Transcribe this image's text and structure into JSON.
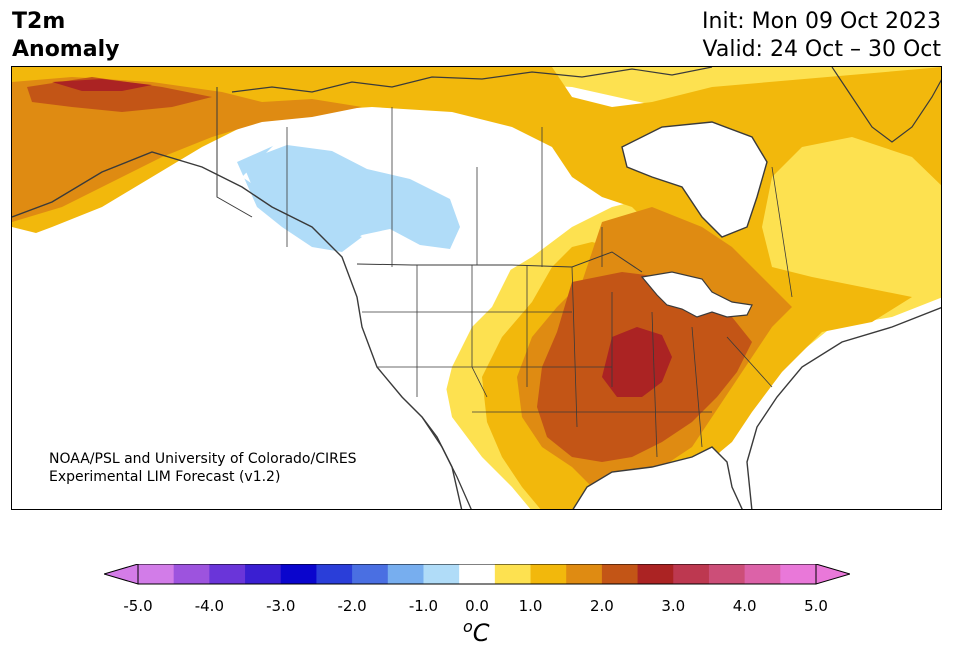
{
  "header": {
    "variable": "T2m",
    "subtitle": "Anomaly",
    "init": "Init: Mon 09 Oct 2023",
    "valid": "Valid: 24 Oct – 30 Oct"
  },
  "credit": {
    "line1": "NOAA/PSL and University of Colorado/CIRES",
    "line2": "Experimental LIM Forecast (v1.2)"
  },
  "colorbar": {
    "units_base": "C",
    "units_sup": "o",
    "tick_labels": [
      "-5.0",
      "-4.0",
      "-3.0",
      "-2.0",
      "-1.0",
      "0.0",
      "1.0",
      "2.0",
      "3.0",
      "4.0",
      "5.0"
    ],
    "levels": [
      -5,
      -4.5,
      -4,
      -3.5,
      -3,
      -2.5,
      -2,
      -1.5,
      -1,
      -0.5,
      0.5,
      1,
      1.5,
      2,
      2.5,
      3,
      3.5,
      4,
      4.5,
      5
    ],
    "colors": [
      "#d27ce8",
      "#9d53de",
      "#6a35d9",
      "#3a1fd2",
      "#0a05cd",
      "#2a3ed9",
      "#4a6fe2",
      "#77aeef",
      "#b0dcf8",
      "#ffffff",
      "#fde150",
      "#f2b80c",
      "#df8b12",
      "#c35516",
      "#ab2323",
      "#bd3850",
      "#cc4e78",
      "#dc62a8",
      "#e978d9"
    ],
    "under_color": "#d47ce8",
    "over_color": "#e978d9"
  },
  "map": {
    "region": "North America",
    "anomaly_regions": [
      {
        "area": "Alaska",
        "level": "1.0 to 2.5"
      },
      {
        "area": "Northern Alaska coast",
        "level": "2.5 to 3.0"
      },
      {
        "area": "British Columbia / Alberta",
        "level": "-1.0 to -0.5"
      },
      {
        "area": "Western United States",
        "level": "-0.5 to 0.5"
      },
      {
        "area": "Great Plains / Midwest",
        "level": "1.5 to 2.5"
      },
      {
        "area": "Mississippi Valley",
        "level": "2.5 to 3.0"
      },
      {
        "area": "Eastern Canada",
        "level": "1.0 to 2.0"
      }
    ]
  }
}
